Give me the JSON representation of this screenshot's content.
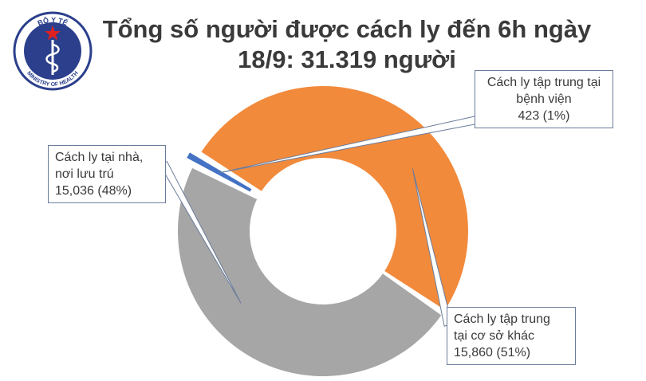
{
  "title": {
    "line1": "Tổng số người được cách ly đến 6h ngày",
    "line2": "18/9: 31.319 người"
  },
  "logo": {
    "top_text": "BỘ Y TẾ",
    "bottom_text": "MINISTRY OF HEALTH",
    "icon": "ministry-of-health-emblem"
  },
  "chart_data": {
    "type": "pie",
    "donut": true,
    "title": "Tổng số người được cách ly đến 6h ngày 18/9: 31.319 người",
    "slices": [
      {
        "label_line1": "Cách ly tập trung tại",
        "label_line2": "bệnh viện",
        "value": 423,
        "value_text": "423 (1%)",
        "percent": 1,
        "color": "#4472c4"
      },
      {
        "label_line1": "Cách ly tập trung",
        "label_line2": "tại cơ sở khác",
        "value": 15860,
        "value_text": "15,860 (51%)",
        "percent": 51,
        "color": "#f28a3c"
      },
      {
        "label_line1": "Cách ly tại nhà,",
        "label_line2": "nơi lưu trú",
        "value": 15036,
        "value_text": "15,036 (48%)",
        "percent": 48,
        "color": "#a6a6a6"
      }
    ]
  }
}
